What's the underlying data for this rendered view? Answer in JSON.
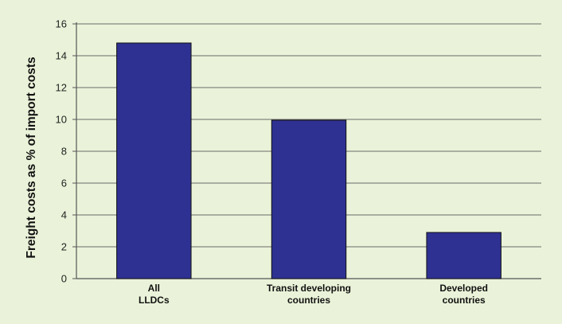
{
  "chart_data": {
    "type": "bar",
    "categories": [
      [
        "All",
        "LLDCs"
      ],
      [
        "Transit developing",
        "countries"
      ],
      [
        "Developed",
        "countries"
      ]
    ],
    "values": [
      14.8,
      9.95,
      2.9
    ],
    "title": "",
    "xlabel": "",
    "ylabel": "Freight costs as % of import costs",
    "ylim": [
      0,
      16
    ],
    "yticks": [
      0,
      2,
      4,
      6,
      8,
      10,
      12,
      14,
      16
    ],
    "grid": true,
    "legend": "none"
  },
  "colors": {
    "background": "#eaf3d9",
    "bar_fill": "#2e3192",
    "bar_stroke": "#111111",
    "grid": "#6b6b6b",
    "axis": "#555555"
  }
}
